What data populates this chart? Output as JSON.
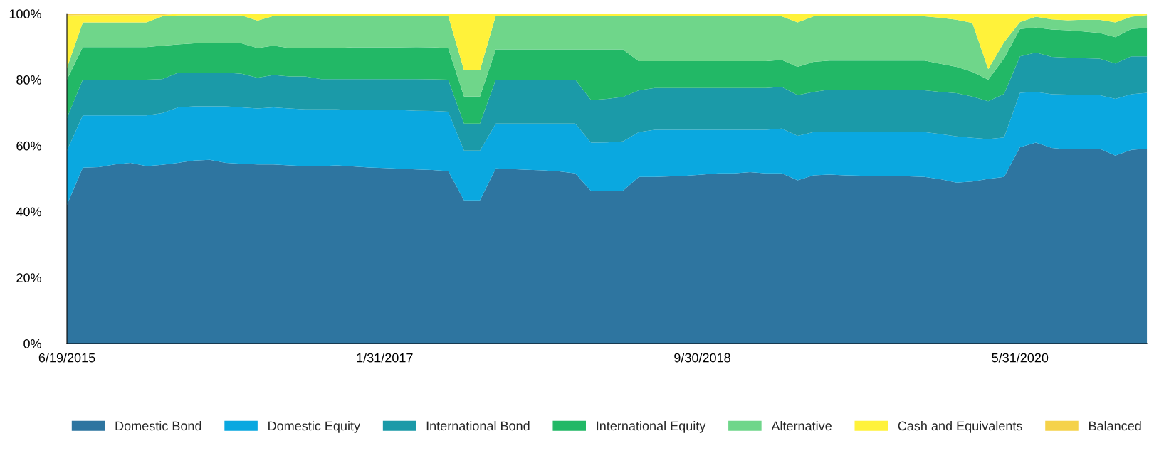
{
  "chart_data": {
    "type": "area",
    "stacked": true,
    "legend": "bottom",
    "categories": [
      "6/19/2015",
      null,
      null,
      null,
      null,
      null,
      null,
      null,
      null,
      null,
      null,
      null,
      null,
      null,
      null,
      null,
      null,
      null,
      null,
      null,
      "1/31/2017",
      null,
      null,
      null,
      null,
      null,
      null,
      null,
      null,
      null,
      null,
      null,
      null,
      null,
      null,
      null,
      null,
      null,
      null,
      null,
      "9/30/2018",
      null,
      null,
      null,
      null,
      null,
      null,
      null,
      null,
      null,
      null,
      null,
      null,
      null,
      null,
      null,
      null,
      null,
      null,
      null,
      "5/31/2020",
      null,
      null,
      null,
      null,
      null,
      null,
      null,
      null
    ],
    "ylim": [
      0,
      100
    ],
    "yticks": [
      {
        "value": 0,
        "label": "0%"
      },
      {
        "value": 20,
        "label": "20%"
      },
      {
        "value": 40,
        "label": "40%"
      },
      {
        "value": 60,
        "label": "60%"
      },
      {
        "value": 80,
        "label": "80%"
      },
      {
        "value": 100,
        "label": "100%"
      }
    ],
    "series": [
      {
        "name": "Domestic Bond",
        "color": "#2e75a0",
        "values": [
          42,
          53.3,
          53.5,
          54.3,
          54.8,
          53.8,
          54.2,
          54.8,
          55.5,
          55.7,
          54.8,
          54.5,
          54.3,
          54.3,
          54.0,
          53.8,
          53.8,
          54.0,
          53.7,
          53.4,
          53.2,
          53.0,
          52.8,
          52.6,
          52.3,
          43.4,
          43.4,
          53.1,
          52.9,
          52.7,
          52.5,
          52.2,
          51.6,
          46.2,
          46.2,
          46.3,
          50.5,
          50.5,
          50.7,
          50.9,
          51.2,
          51.6,
          51.6,
          52.0,
          51.6,
          51.6,
          49.5,
          51.0,
          51.2,
          51.0,
          50.9,
          50.9,
          50.8,
          50.7,
          50.5,
          49.8,
          48.8,
          49.1,
          49.9,
          50.5,
          59.5,
          60.9,
          59.3,
          58.9,
          59.1,
          59.1,
          57.0,
          58.7,
          59.1
        ]
      },
      {
        "name": "Domestic Equity",
        "color": "#0aa8e0",
        "values": [
          16.5,
          15.9,
          15.7,
          14.9,
          14.4,
          15.4,
          15.7,
          16.8,
          16.4,
          16.2,
          17.1,
          17.1,
          17.0,
          17.3,
          17.3,
          17.2,
          17.2,
          17.0,
          17.1,
          17.4,
          17.6,
          17.8,
          17.8,
          17.9,
          18.0,
          15.1,
          15.1,
          13.6,
          13.8,
          14.0,
          14.2,
          14.5,
          15.1,
          14.7,
          14.8,
          15.0,
          13.6,
          14.3,
          14.1,
          13.9,
          13.6,
          13.2,
          13.2,
          12.8,
          13.2,
          13.6,
          13.5,
          13.1,
          12.9,
          13.1,
          13.2,
          13.2,
          13.3,
          13.4,
          13.6,
          13.7,
          14.0,
          13.3,
          12.1,
          12.0,
          16.5,
          15.4,
          16.3,
          16.6,
          16.2,
          16.2,
          17.2,
          16.9,
          16.9
        ]
      },
      {
        "name": "International Bond",
        "color": "#1b9aa8",
        "values": [
          9.9,
          10.8,
          10.8,
          10.8,
          10.8,
          10.8,
          10.3,
          10.5,
          10.2,
          10.2,
          10.2,
          10.2,
          9.3,
          9.8,
          9.7,
          10.0,
          9.2,
          9.2,
          9.4,
          9.4,
          9.4,
          9.4,
          9.6,
          9.6,
          9.7,
          8.2,
          8.2,
          13.3,
          13.3,
          13.3,
          13.3,
          13.3,
          13.3,
          12.9,
          13.2,
          13.5,
          12.7,
          12.7,
          12.7,
          12.7,
          12.7,
          12.7,
          12.7,
          12.7,
          12.7,
          12.6,
          12.3,
          12.2,
          12.9,
          12.9,
          12.9,
          12.9,
          12.9,
          12.9,
          12.7,
          12.8,
          13.1,
          12.5,
          11.5,
          13.2,
          11.1,
          11.9,
          11.3,
          11.2,
          11.2,
          11.1,
          10.7,
          11.5,
          11.1
        ]
      },
      {
        "name": "International Equity",
        "color": "#22b866",
        "values": [
          11.6,
          9.9,
          9.9,
          9.9,
          9.9,
          9.9,
          10.1,
          8.6,
          8.9,
          8.9,
          8.9,
          9.2,
          9.0,
          8.9,
          8.6,
          8.6,
          9.4,
          9.4,
          9.6,
          9.6,
          9.6,
          9.6,
          9.7,
          9.7,
          9.6,
          8.2,
          8.2,
          9.2,
          9.2,
          9.2,
          9.2,
          9.2,
          9.2,
          15.4,
          15.0,
          14.4,
          8.8,
          8.1,
          8.1,
          8.1,
          8.1,
          8.1,
          8.1,
          8.1,
          8.1,
          8.2,
          8.6,
          9.1,
          8.8,
          8.8,
          8.8,
          8.8,
          8.8,
          8.8,
          9.0,
          8.5,
          8.0,
          7.5,
          6.5,
          10.8,
          8.3,
          7.6,
          8.3,
          8.3,
          8.1,
          7.8,
          8.0,
          8.3,
          8.6
        ]
      },
      {
        "name": "Alternative",
        "color": "#6fd68a",
        "values": [
          3.5,
          7.5,
          7.5,
          7.5,
          7.5,
          7.5,
          8.9,
          8.8,
          8.5,
          8.5,
          8.5,
          8.5,
          8.3,
          9.0,
          9.8,
          9.8,
          9.8,
          9.8,
          9.6,
          9.6,
          9.6,
          9.6,
          9.5,
          9.6,
          9.8,
          7.9,
          7.9,
          10.2,
          10.2,
          10.2,
          10.2,
          10.2,
          10.2,
          10.2,
          10.2,
          10.2,
          13.8,
          13.8,
          13.8,
          13.8,
          13.8,
          13.8,
          13.8,
          13.8,
          13.8,
          13.2,
          13.5,
          13.8,
          13.4,
          13.4,
          13.4,
          13.4,
          13.4,
          13.4,
          13.4,
          14.0,
          14.3,
          14.8,
          3.2,
          4.9,
          2.1,
          3.3,
          3.1,
          3.0,
          3.6,
          4.0,
          4.5,
          3.7,
          3.9
        ]
      },
      {
        "name": "Cash and Equivalents",
        "color": "#fff23a",
        "values": [
          16.0,
          2.2,
          2.2,
          2.2,
          2.2,
          2.2,
          0.4,
          0.5,
          0.5,
          0.5,
          0.5,
          0.5,
          2.1,
          0.7,
          0.6,
          0.6,
          0.6,
          0.6,
          0.6,
          0.6,
          0.6,
          0.6,
          0.6,
          0.6,
          0.6,
          17.2,
          17.2,
          0.6,
          0.6,
          0.6,
          0.6,
          0.6,
          0.6,
          0.6,
          0.6,
          0.6,
          0.6,
          0.6,
          0.6,
          0.6,
          0.6,
          0.6,
          0.6,
          0.6,
          0.6,
          0.8,
          2.6,
          0.8,
          0.8,
          0.8,
          0.8,
          0.8,
          0.8,
          0.8,
          0.8,
          1.2,
          1.8,
          2.8,
          16.8,
          8.6,
          2.5,
          0.9,
          1.7,
          2.0,
          1.8,
          1.8,
          2.6,
          0.9,
          0.4
        ]
      },
      {
        "name": "Balanced",
        "color": "#f5d24a",
        "values": [
          0.5,
          0.4,
          0.4,
          0.4,
          0.4,
          0.4,
          0.4,
          0,
          0,
          0,
          0,
          0,
          0,
          0,
          0,
          0,
          0,
          0,
          0,
          0,
          0,
          0,
          0,
          0,
          0,
          0,
          0,
          0,
          0,
          0,
          0,
          0,
          0,
          0,
          0,
          0,
          0,
          0,
          0,
          0,
          0,
          0,
          0,
          0,
          0,
          0,
          0,
          0,
          0,
          0,
          0,
          0,
          0,
          0,
          0,
          0,
          0,
          0,
          0,
          0,
          0,
          0,
          0,
          0,
          0,
          0,
          0,
          0,
          0
        ]
      }
    ]
  }
}
